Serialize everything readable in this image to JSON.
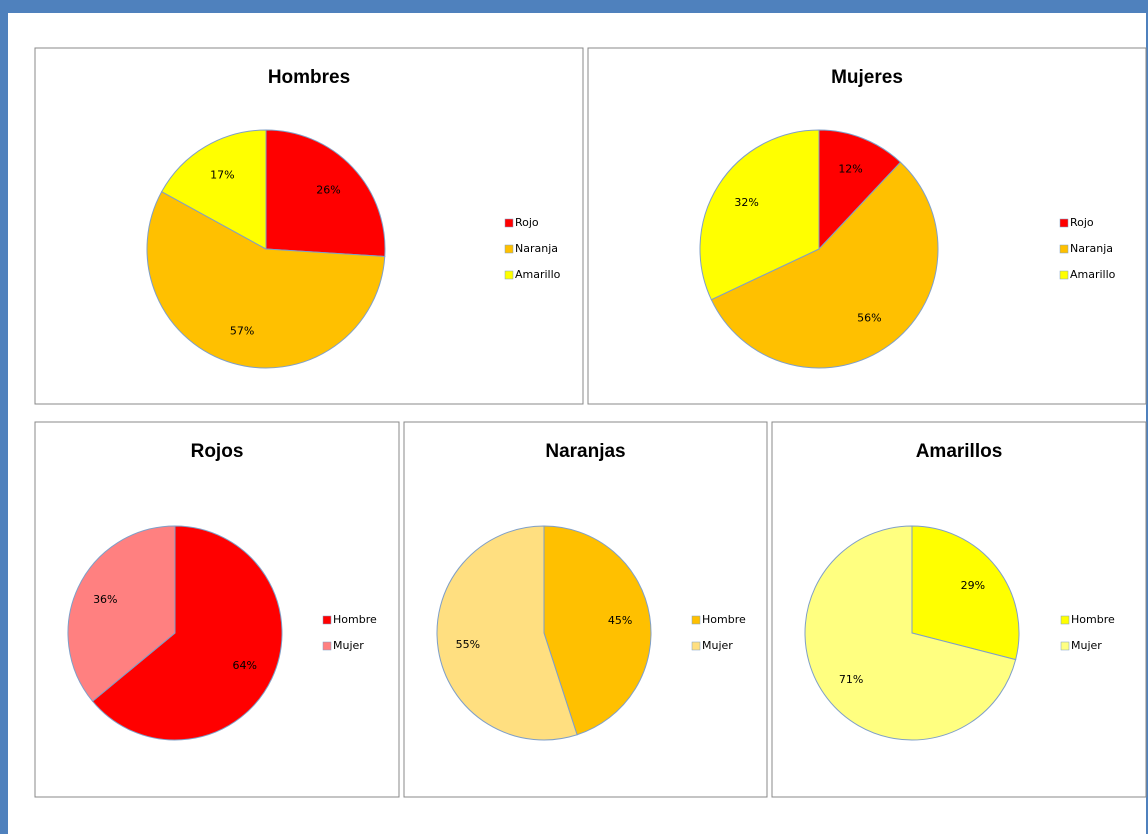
{
  "chart_data": [
    {
      "type": "pie",
      "title": "Hombres",
      "categories": [
        "Rojo",
        "Naranja",
        "Amarillo"
      ],
      "values": [
        26,
        57,
        17
      ],
      "value_labels": [
        "26%",
        "57%",
        "17%"
      ],
      "colors": [
        "#ff0000",
        "#ffc000",
        "#ffff00"
      ]
    },
    {
      "type": "pie",
      "title": "Mujeres",
      "categories": [
        "Rojo",
        "Naranja",
        "Amarillo"
      ],
      "values": [
        12,
        56,
        32
      ],
      "value_labels": [
        "12%",
        "56%",
        "32%"
      ],
      "colors": [
        "#ff0000",
        "#ffc000",
        "#ffff00"
      ]
    },
    {
      "type": "pie",
      "title": "Rojos",
      "categories": [
        "Hombre",
        "Mujer"
      ],
      "values": [
        64,
        36
      ],
      "value_labels": [
        "64%",
        "36%"
      ],
      "colors": [
        "#ff0000",
        "#ff8080"
      ]
    },
    {
      "type": "pie",
      "title": "Naranjas",
      "categories": [
        "Hombre",
        "Mujer"
      ],
      "values": [
        45,
        55
      ],
      "value_labels": [
        "45%",
        "55%"
      ],
      "colors": [
        "#ffc000",
        "#ffdf80"
      ]
    },
    {
      "type": "pie",
      "title": "Amarillos",
      "categories": [
        "Hombre",
        "Mujer"
      ],
      "values": [
        29,
        71
      ],
      "value_labels": [
        "29%",
        "71%"
      ],
      "colors": [
        "#ffff00",
        "#ffff80"
      ]
    }
  ]
}
